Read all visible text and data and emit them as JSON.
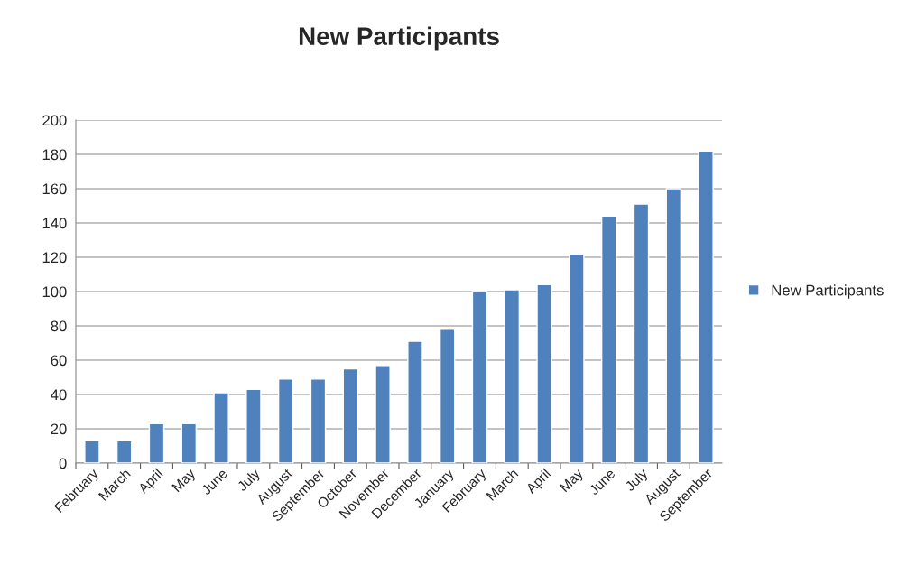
{
  "chart_data": {
    "type": "bar",
    "title": "New Participants",
    "categories": [
      "February",
      "March",
      "April",
      "May",
      "June",
      "July",
      "August",
      "September",
      "October",
      "November",
      "December",
      "January",
      "February",
      "March",
      "April",
      "May",
      "June",
      "July",
      "August",
      "September"
    ],
    "series": [
      {
        "name": "New Participants",
        "color": "#4f81bd",
        "values": [
          13,
          13,
          23,
          23,
          41,
          43,
          49,
          49,
          55,
          57,
          71,
          78,
          100,
          101,
          104,
          122,
          144,
          151,
          160,
          182
        ]
      }
    ],
    "ylim": [
      0,
      200
    ],
    "yticks": [
      0,
      20,
      40,
      60,
      80,
      100,
      120,
      140,
      160,
      180,
      200
    ],
    "grid": "y",
    "legend": "right"
  }
}
